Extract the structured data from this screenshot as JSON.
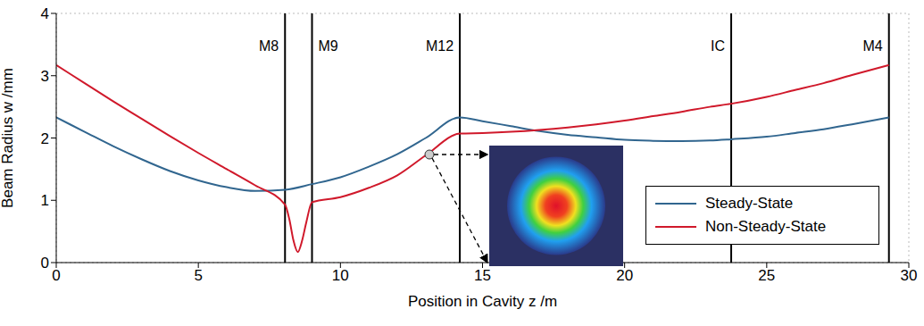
{
  "chart_data": {
    "type": "line",
    "xlabel": "Position in Cavity z /m",
    "ylabel": "Beam Radius w /mm",
    "xlim": [
      0,
      30
    ],
    "ylim": [
      0,
      4
    ],
    "xticks": [
      0,
      5,
      10,
      15,
      20,
      25,
      30
    ],
    "yticks": [
      0,
      1,
      2,
      3,
      4
    ],
    "grid": true,
    "legend": "lower right",
    "annotations": [
      {
        "text": "M8",
        "x": 8.05
      },
      {
        "text": "M9",
        "x": 9.0
      },
      {
        "text": "M12",
        "x": 14.2
      },
      {
        "text": "IC",
        "x": 23.75
      },
      {
        "text": "M4",
        "x": 29.3
      }
    ],
    "series": [
      {
        "name": "Steady-State",
        "color": "#31668f",
        "x": [
          0,
          1,
          2,
          3,
          4,
          5,
          6,
          7,
          8.05,
          9.0,
          10,
          11,
          12,
          13,
          14.2,
          15,
          16,
          17,
          18,
          19,
          20,
          21,
          22,
          23,
          23.75,
          25,
          26,
          27,
          28,
          29.3
        ],
        "values": [
          2.33,
          2.1,
          1.87,
          1.66,
          1.47,
          1.32,
          1.21,
          1.15,
          1.17,
          1.26,
          1.37,
          1.54,
          1.74,
          2.0,
          2.33,
          2.27,
          2.19,
          2.11,
          2.05,
          2.01,
          1.97,
          1.955,
          1.95,
          1.96,
          1.98,
          2.02,
          2.08,
          2.14,
          2.22,
          2.33
        ]
      },
      {
        "name": "Non-Steady-State",
        "color": "#d0192b",
        "x": [
          0,
          1,
          2,
          3,
          4,
          5,
          6,
          7,
          8.05,
          8.2,
          8.35,
          8.5,
          8.65,
          8.8,
          9.0,
          10,
          11,
          12,
          13,
          14.2,
          15,
          16,
          17,
          18,
          19,
          20,
          21,
          22,
          23,
          23.75,
          25,
          26,
          27,
          28,
          29.3
        ],
        "values": [
          3.17,
          2.88,
          2.59,
          2.31,
          2.03,
          1.76,
          1.5,
          1.24,
          0.93,
          0.7,
          0.35,
          0.17,
          0.35,
          0.65,
          0.97,
          1.05,
          1.2,
          1.4,
          1.72,
          2.07,
          2.08,
          2.1,
          2.13,
          2.17,
          2.22,
          2.28,
          2.35,
          2.42,
          2.5,
          2.55,
          2.66,
          2.77,
          2.88,
          3.01,
          3.17
        ]
      }
    ]
  }
}
